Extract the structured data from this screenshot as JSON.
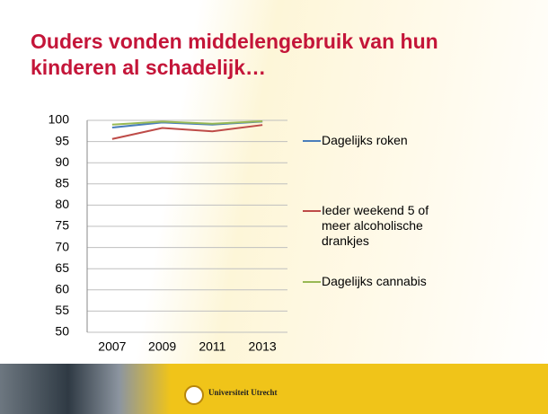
{
  "title": "Ouders vonden middelengebruik van hun kinderen al schadelijk…",
  "footer": "Universiteit Utrecht",
  "chart_data": {
    "type": "line",
    "categories": [
      "2007",
      "2009",
      "2011",
      "2013"
    ],
    "series": [
      {
        "name": "Dagelijks roken",
        "color": "#4a7ebb",
        "values": [
          98.3,
          99.5,
          99.0,
          99.7
        ]
      },
      {
        "name": "Ieder weekend 5 of meer alcoholische drankjes",
        "color": "#be4b48",
        "values": [
          95.6,
          98.2,
          97.4,
          98.9
        ]
      },
      {
        "name": "Dagelijks cannabis",
        "color": "#98b954",
        "values": [
          99.0,
          99.7,
          99.2,
          99.8
        ]
      }
    ],
    "ylim": [
      50,
      100
    ],
    "yticks": [
      50,
      55,
      60,
      65,
      70,
      75,
      80,
      85,
      90,
      95,
      100
    ],
    "grid": true,
    "legend": "right"
  }
}
